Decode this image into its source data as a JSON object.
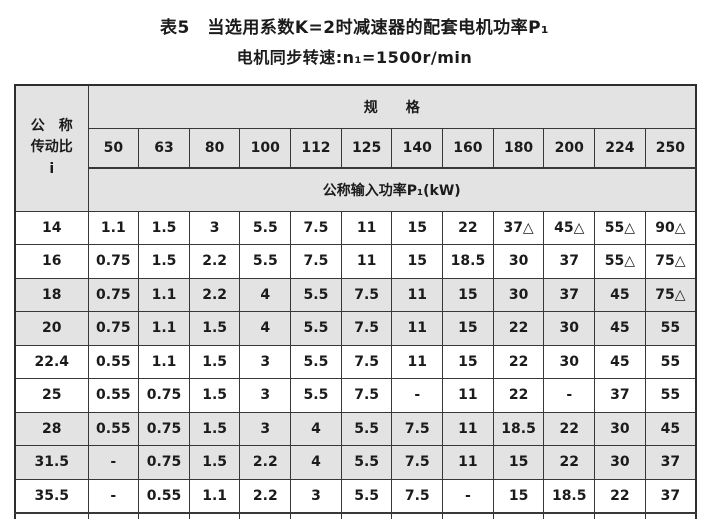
{
  "title": "表5　当选用系数K=2时减速器的配套电机功率P₁",
  "subtitle": "电机同步转速:n₁=1500r/min",
  "table": {
    "ratio_header": "公　称\n传动比\ni",
    "spec_header": "规　　格",
    "power_header": "公称输入功率P₁(kW)",
    "columns": [
      "50",
      "63",
      "80",
      "100",
      "112",
      "125",
      "140",
      "160",
      "180",
      "200",
      "224",
      "250"
    ],
    "rows": [
      {
        "ratio": "14",
        "shaded": false,
        "values": [
          "1.1",
          "1.5",
          "3",
          "5.5",
          "7.5",
          "11",
          "15",
          "22",
          "37△",
          "45△",
          "55△",
          "90△"
        ]
      },
      {
        "ratio": "16",
        "shaded": false,
        "values": [
          "0.75",
          "1.5",
          "2.2",
          "5.5",
          "7.5",
          "11",
          "15",
          "18.5",
          "30",
          "37",
          "55△",
          "75△"
        ]
      },
      {
        "ratio": "18",
        "shaded": true,
        "values": [
          "0.75",
          "1.1",
          "2.2",
          "4",
          "5.5",
          "7.5",
          "11",
          "15",
          "30",
          "37",
          "45",
          "75△"
        ]
      },
      {
        "ratio": "20",
        "shaded": true,
        "values": [
          "0.75",
          "1.1",
          "1.5",
          "4",
          "5.5",
          "7.5",
          "11",
          "15",
          "22",
          "30",
          "45",
          "55"
        ]
      },
      {
        "ratio": "22.4",
        "shaded": false,
        "values": [
          "0.55",
          "1.1",
          "1.5",
          "3",
          "5.5",
          "7.5",
          "11",
          "15",
          "22",
          "30",
          "45",
          "55"
        ]
      },
      {
        "ratio": "25",
        "shaded": false,
        "values": [
          "0.55",
          "0.75",
          "1.5",
          "3",
          "5.5",
          "7.5",
          "-",
          "11",
          "22",
          "-",
          "37",
          "55"
        ]
      },
      {
        "ratio": "28",
        "shaded": true,
        "values": [
          "0.55",
          "0.75",
          "1.5",
          "3",
          "4",
          "5.5",
          "7.5",
          "11",
          "18.5",
          "22",
          "30",
          "45"
        ]
      },
      {
        "ratio": "31.5",
        "shaded": true,
        "values": [
          "-",
          "0.75",
          "1.5",
          "2.2",
          "4",
          "5.5",
          "7.5",
          "11",
          "15",
          "22",
          "30",
          "37"
        ]
      },
      {
        "ratio": "35.5",
        "shaded": false,
        "values": [
          "-",
          "0.55",
          "1.1",
          "2.2",
          "3",
          "5.5",
          "7.5",
          "-",
          "15",
          "18.5",
          "22",
          "37"
        ]
      }
    ]
  },
  "colors": {
    "page_bg": "#ffffff",
    "header_bg": "#e3e3e3",
    "shaded_row_bg": "#e3e3e3",
    "border": "#383838",
    "text": "#1b1b1b"
  }
}
